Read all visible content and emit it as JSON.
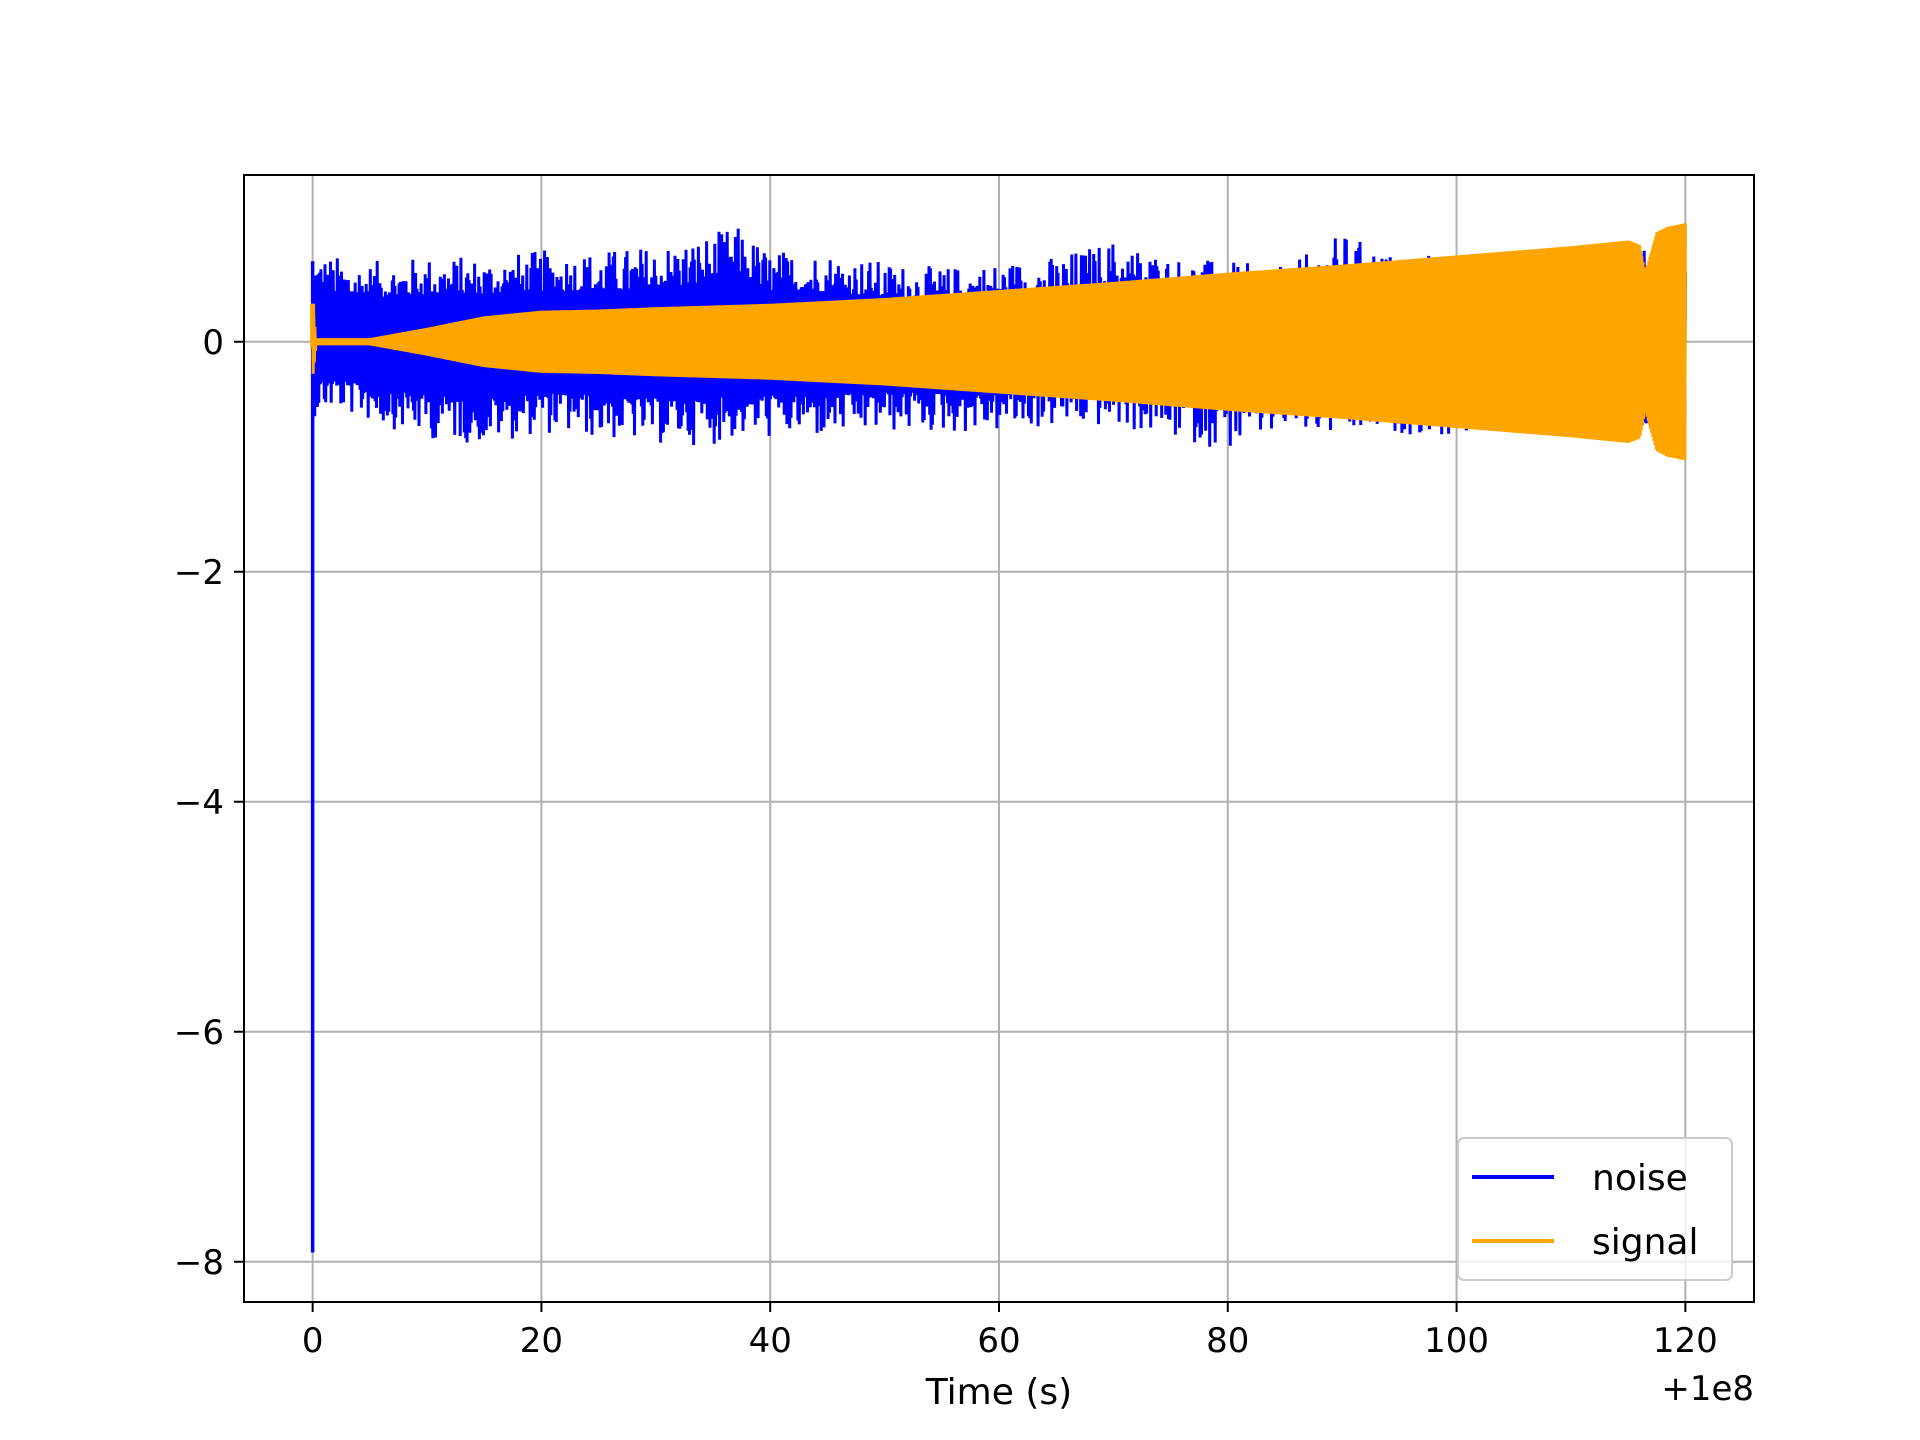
{
  "chart_data": {
    "type": "line",
    "title": "",
    "xlabel": "Time (s)",
    "ylabel": "",
    "x_offset_label": "+1e8",
    "xlim": [
      -6,
      126
    ],
    "ylim": [
      -8.35,
      1.45
    ],
    "x_ticks": [
      0,
      20,
      40,
      60,
      80,
      100,
      120
    ],
    "x_tick_labels": [
      "0",
      "20",
      "40",
      "60",
      "80",
      "100",
      "120"
    ],
    "y_ticks": [
      0,
      -2,
      -4,
      -6,
      -8
    ],
    "y_tick_labels": [
      "0",
      "−2",
      "−4",
      "−6",
      "−8"
    ],
    "grid": true,
    "legend": "lower-right",
    "series": [
      {
        "name": "noise",
        "color": "#0000ff",
        "x_range": [
          0,
          120
        ],
        "min_value": -7.92,
        "max_value": 1.02,
        "envelope": {
          "x": [
            0,
            0.2,
            2,
            5,
            10,
            15,
            20,
            25,
            30,
            35,
            37,
            40,
            45,
            50,
            55,
            60,
            65,
            70,
            75,
            80,
            85,
            90,
            95,
            100,
            105,
            110,
            115,
            118,
            120
          ],
          "upper": [
            0.7,
            0.8,
            0.75,
            0.7,
            0.75,
            0.75,
            0.8,
            0.8,
            0.85,
            0.95,
            1.02,
            0.8,
            0.8,
            0.7,
            0.65,
            0.7,
            0.75,
            0.9,
            0.75,
            0.7,
            0.65,
            0.95,
            0.75,
            0.8,
            0.75,
            0.8,
            0.8,
            0.8,
            0.95
          ],
          "lower": [
            -7.92,
            -0.65,
            -0.6,
            -0.7,
            -0.85,
            -0.9,
            -0.8,
            -0.85,
            -0.9,
            -0.9,
            -0.85,
            -0.85,
            -0.85,
            -0.8,
            -0.8,
            -0.8,
            -0.75,
            -0.75,
            -0.85,
            -0.95,
            -0.8,
            -0.85,
            -0.8,
            -0.85,
            -0.75,
            -0.75,
            -0.8,
            -0.85,
            -1.25
          ]
        }
      },
      {
        "name": "signal",
        "color": "#ffa500",
        "x_range": [
          0,
          120
        ],
        "amplitude": {
          "x": [
            0,
            0.3,
            5,
            10,
            15,
            20,
            25,
            30,
            40,
            50,
            60,
            70,
            80,
            90,
            100,
            105,
            110,
            115,
            116,
            116.5,
            117.5,
            118.5,
            120
          ],
          "value": [
            0.33,
            0.03,
            0.03,
            0.12,
            0.22,
            0.27,
            0.28,
            0.3,
            0.33,
            0.38,
            0.45,
            0.52,
            0.6,
            0.67,
            0.75,
            0.79,
            0.83,
            0.88,
            0.84,
            0.6,
            0.95,
            1.0,
            1.03
          ]
        }
      }
    ]
  }
}
